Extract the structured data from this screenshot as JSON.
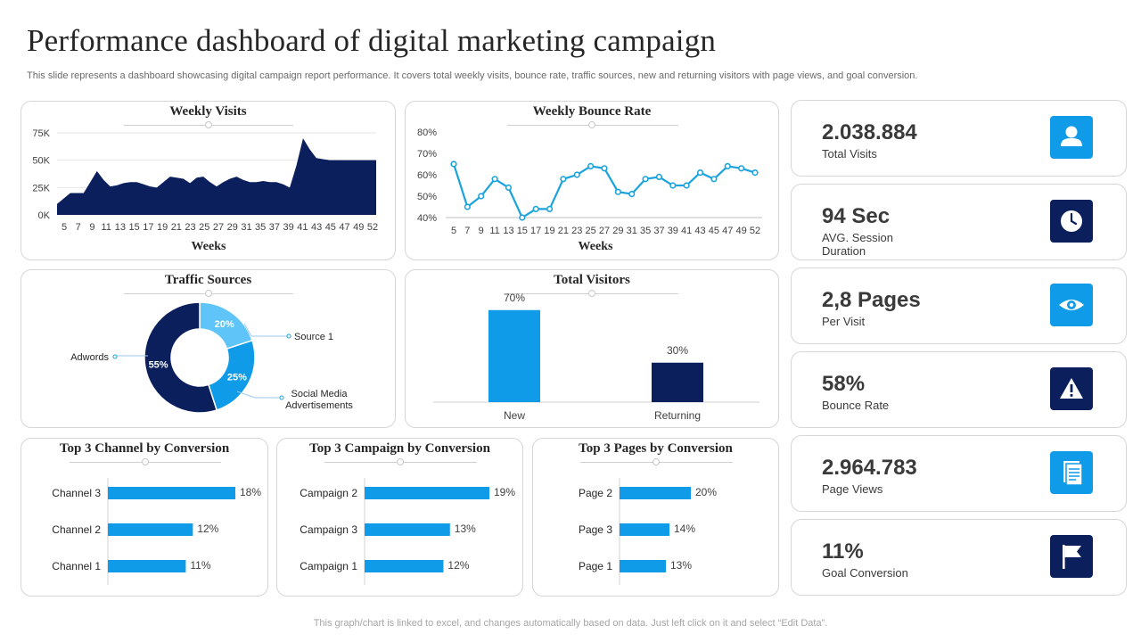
{
  "header": {
    "title": "Performance dashboard of digital marketing campaign",
    "subtitle": "This slide represents a dashboard showcasing digital campaign report performance. It covers total weekly visits, bounce rate, traffic sources, new and returning visitors with page views, and goal conversion.",
    "footer": "This graph/chart is linked to excel,  and changes automatically based on data. Just left click on it and select “Edit Data”."
  },
  "colors": {
    "navy": "#0a1f5c",
    "blue": "#0f9be8",
    "light_blue": "#5fc4f8",
    "line": "#1aa3dc"
  },
  "chart_data": [
    {
      "type": "area",
      "title": "Weekly Visits",
      "xlabel": "Weeks",
      "ylabel": "",
      "x": [
        4,
        5,
        6,
        7,
        8,
        9,
        10,
        11,
        12,
        13,
        14,
        15,
        16,
        17,
        18,
        19,
        20,
        21,
        22,
        23,
        24,
        25,
        26,
        27,
        28,
        29,
        30,
        31,
        32,
        33,
        34,
        35,
        36,
        37,
        38,
        39,
        40,
        41,
        42,
        43,
        44,
        45,
        46,
        47,
        48,
        49,
        50,
        51,
        52
      ],
      "x_tick_labels": [
        "5",
        "7",
        "9",
        "11",
        "13",
        "15",
        "17",
        "19",
        "21",
        "23",
        "25",
        "27",
        "29",
        "31",
        "35",
        "37",
        "39",
        "41",
        "43",
        "45",
        "47",
        "49",
        "52"
      ],
      "values": [
        10000,
        15000,
        20000,
        20000,
        20000,
        30000,
        40000,
        32000,
        26000,
        27000,
        29000,
        30000,
        30000,
        28000,
        26000,
        25000,
        30000,
        35000,
        34000,
        33000,
        29000,
        34000,
        35000,
        30000,
        26000,
        30000,
        33000,
        35000,
        32000,
        30000,
        30000,
        31000,
        30000,
        30000,
        28000,
        25000,
        45000,
        70000,
        60000,
        52000,
        51000,
        50000,
        50000,
        50000,
        50000,
        50000,
        50000,
        50000,
        50000
      ],
      "ylim": [
        0,
        75000
      ],
      "y_ticks": [
        "0K",
        "25K",
        "50K",
        "75K"
      ],
      "grid": true
    },
    {
      "type": "line",
      "title": "Weekly Bounce Rate",
      "xlabel": "Weeks",
      "ylabel": "",
      "x_tick_labels": [
        "5",
        "7",
        "9",
        "11",
        "13",
        "15",
        "17",
        "19",
        "21",
        "23",
        "25",
        "27",
        "29",
        "31",
        "35",
        "37",
        "39",
        "41",
        "43",
        "45",
        "47",
        "49",
        "52"
      ],
      "values": [
        65,
        45,
        50,
        58,
        54,
        40,
        44,
        44,
        58,
        60,
        64,
        63,
        52,
        51,
        58,
        59,
        55,
        55,
        61,
        58,
        64,
        63,
        61
      ],
      "ylim": [
        40,
        80
      ],
      "y_ticks": [
        "40%",
        "50%",
        "60%",
        "70%",
        "80%"
      ],
      "grid": true
    },
    {
      "type": "pie",
      "title": "Traffic Sources",
      "slices": [
        {
          "name": "Source 1",
          "value": 20,
          "label": "20%"
        },
        {
          "name": "Social Media Advertisements",
          "value": 25,
          "label": "25%"
        },
        {
          "name": "Adwords",
          "value": 55,
          "label": "55%"
        }
      ]
    },
    {
      "type": "bar",
      "title": "Total Visitors",
      "categories": [
        "New",
        "Returning"
      ],
      "values": [
        70,
        30
      ],
      "value_labels": [
        "70%",
        "30%"
      ],
      "ylim": [
        0,
        80
      ]
    },
    {
      "type": "bar",
      "orientation": "horizontal",
      "title": "Top 3 Channel  by Conversion",
      "categories": [
        "Channel 3",
        "Channel 2",
        "Channel 1"
      ],
      "values": [
        18,
        12,
        11
      ],
      "value_labels": [
        "18%",
        "12%",
        "11%"
      ],
      "xlim": [
        0,
        20
      ]
    },
    {
      "type": "bar",
      "orientation": "horizontal",
      "title": "Top 3 Campaign  by Conversion",
      "categories": [
        "Campaign 2",
        "Campaign 3",
        "Campaign 1"
      ],
      "values": [
        19,
        13,
        12
      ],
      "value_labels": [
        "19%",
        "13%",
        "12%"
      ],
      "xlim": [
        0,
        20
      ]
    },
    {
      "type": "bar",
      "orientation": "horizontal",
      "title": "Top 3 Pages by Conversion",
      "categories": [
        "Page 2",
        "Page 3",
        "Page 1"
      ],
      "values": [
        20,
        14,
        13
      ],
      "value_labels": [
        "20%",
        "14%",
        "13%"
      ],
      "xlim": [
        0,
        40
      ]
    }
  ],
  "kpis": [
    {
      "value": "2.038.884",
      "label": "Total Visits",
      "icon": "user-icon",
      "color": "#0f9be8"
    },
    {
      "value": "94 Sec",
      "label": "AVG. Session Duration",
      "icon": "clock-icon",
      "color": "#0a1f5c"
    },
    {
      "value": "2,8 Pages",
      "label": "Per Visit",
      "icon": "eye-icon",
      "color": "#0f9be8"
    },
    {
      "value": "58%",
      "label": "Bounce Rate",
      "icon": "warning-icon",
      "color": "#0a1f5c"
    },
    {
      "value": "2.964.783",
      "label": "Page Views",
      "icon": "document-icon",
      "color": "#0f9be8"
    },
    {
      "value": "11%",
      "label": "Goal Conversion",
      "icon": "flag-icon",
      "color": "#0a1f5c"
    }
  ]
}
